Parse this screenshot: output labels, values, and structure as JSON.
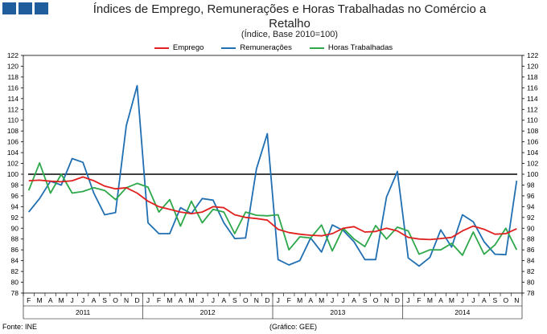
{
  "header": {
    "title_line1": "Índices de Emprego, Remunerações e Horas Trabalhadas no Comércio a",
    "title_line2": "Retalho",
    "subtitle": "(Índice, Base 2010=100)"
  },
  "footer": {
    "source": "Fonte: INE",
    "credit": "(Gráfico: GEE)"
  },
  "colors": {
    "emprego": "#e0201f",
    "remuneracoes": "#1f6fb2",
    "horas": "#2ea84a",
    "reference": "#000000",
    "logo": "#1f5d9c"
  },
  "chart_data": {
    "type": "line",
    "title": "Índices de Emprego, Remunerações e Horas Trabalhadas no Comércio a Retalho",
    "subtitle": "(Índice, Base 2010=100)",
    "ylim": [
      78,
      122
    ],
    "ytick_step": 2,
    "reference_line": 100,
    "legend_position": "top",
    "categories": [
      "F",
      "M",
      "A",
      "M",
      "J",
      "J",
      "A",
      "S",
      "O",
      "N",
      "D",
      "J",
      "F",
      "M",
      "A",
      "M",
      "J",
      "J",
      "A",
      "S",
      "O",
      "N",
      "D",
      "J",
      "F",
      "M",
      "A",
      "M",
      "J",
      "J",
      "A",
      "S",
      "O",
      "N",
      "D",
      "J",
      "F",
      "M",
      "A",
      "M",
      "J",
      "J",
      "A",
      "S",
      "O",
      "N"
    ],
    "year_groups": [
      {
        "label": "2011",
        "span": 11
      },
      {
        "label": "2012",
        "span": 12
      },
      {
        "label": "2013",
        "span": 12
      },
      {
        "label": "2014",
        "span": 11
      }
    ],
    "series": [
      {
        "name": "Emprego",
        "color": "#e0201f",
        "values": [
          98.8,
          98.9,
          98.7,
          98.6,
          98.8,
          99.5,
          98.8,
          97.8,
          97.3,
          97.5,
          96.5,
          95.0,
          94.0,
          93.5,
          93.0,
          92.7,
          93.0,
          94.0,
          93.8,
          92.5,
          92.0,
          91.8,
          91.5,
          89.8,
          89.2,
          88.9,
          88.7,
          88.6,
          89.0,
          90.0,
          90.3,
          89.3,
          89.4,
          90.0,
          89.5,
          88.3,
          88.0,
          87.9,
          88.1,
          88.3,
          89.5,
          90.4,
          89.8,
          88.9,
          89.0,
          89.9
        ]
      },
      {
        "name": "Remunerações",
        "color": "#1f6fb2",
        "values": [
          93.0,
          95.5,
          98.7,
          98.0,
          102.9,
          102.2,
          96.5,
          92.5,
          92.9,
          109.0,
          116.4,
          91.0,
          89.0,
          89.0,
          93.8,
          92.7,
          95.5,
          95.2,
          91.0,
          88.1,
          88.2,
          101.0,
          107.5,
          84.2,
          83.2,
          84.0,
          88.2,
          85.6,
          90.6,
          89.6,
          87.5,
          84.2,
          84.2,
          95.8,
          100.5,
          84.5,
          83.0,
          84.6,
          89.7,
          86.5,
          92.5,
          91.2,
          87.5,
          85.2,
          85.1,
          98.8
        ]
      },
      {
        "name": "Horas Trabalhadas",
        "color": "#2ea84a",
        "values": [
          97.0,
          102.1,
          96.5,
          100.0,
          96.5,
          96.8,
          97.5,
          97.0,
          95.3,
          97.5,
          98.3,
          97.6,
          93.0,
          95.3,
          90.4,
          95.0,
          91.0,
          93.5,
          93.0,
          89.0,
          93.0,
          92.4,
          92.3,
          92.5,
          86.0,
          88.4,
          88.2,
          90.6,
          85.8,
          90.0,
          88.0,
          86.6,
          90.5,
          88.0,
          90.2,
          89.5,
          85.2,
          86.0,
          86.0,
          87.2,
          85.0,
          89.3,
          85.2,
          86.9,
          90.0,
          86.0
        ]
      }
    ]
  }
}
